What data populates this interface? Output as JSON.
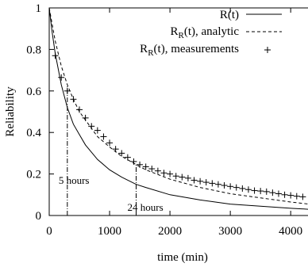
{
  "chart_data": {
    "type": "line",
    "title": "",
    "xlabel": "time (min)",
    "ylabel": "Reliability",
    "xlim": [
      0,
      4300
    ],
    "ylim": [
      0,
      1
    ],
    "x_ticks": [
      0,
      1000,
      2000,
      3000,
      4000
    ],
    "y_ticks": [
      0,
      0.2,
      0.4,
      0.6,
      0.8,
      1
    ],
    "x_tick_labels": [
      "0",
      "1000",
      "2000",
      "3000",
      "4000"
    ],
    "y_tick_labels": [
      "0",
      "0.2",
      "0.4",
      "0.6",
      "0.8",
      "1"
    ],
    "grid": false,
    "legend_position": "top-right",
    "series": [
      {
        "name": "R(t)",
        "style": "solid",
        "x": [
          0,
          50,
          100,
          200,
          300,
          400,
          500,
          600,
          800,
          1000,
          1200,
          1440,
          1600,
          2000,
          2500,
          3000,
          3500,
          4000,
          4300
        ],
        "y": [
          1.0,
          0.88,
          0.78,
          0.63,
          0.52,
          0.44,
          0.39,
          0.34,
          0.27,
          0.22,
          0.185,
          0.15,
          0.135,
          0.1,
          0.075,
          0.055,
          0.045,
          0.035,
          0.03
        ]
      },
      {
        "name": "R_R(t), analytic",
        "style": "dashed",
        "x": [
          0,
          50,
          100,
          200,
          300,
          400,
          500,
          600,
          800,
          1000,
          1200,
          1440,
          1600,
          2000,
          2500,
          3000,
          3500,
          4000,
          4300
        ],
        "y": [
          1.0,
          0.92,
          0.84,
          0.72,
          0.63,
          0.56,
          0.5,
          0.46,
          0.38,
          0.33,
          0.285,
          0.245,
          0.22,
          0.175,
          0.135,
          0.105,
          0.085,
          0.065,
          0.055
        ]
      },
      {
        "name": "R_R(t), measurements",
        "style": "points",
        "x": [
          100,
          200,
          300,
          400,
          500,
          600,
          700,
          800,
          900,
          1000,
          1100,
          1200,
          1300,
          1400,
          1500,
          1600,
          1700,
          1800,
          1900,
          2000,
          2100,
          2200,
          2300,
          2400,
          2500,
          2600,
          2700,
          2800,
          2900,
          3000,
          3100,
          3200,
          3300,
          3400,
          3500,
          3600,
          3700,
          3800,
          3900,
          4000,
          4100,
          4200
        ],
        "y": [
          0.77,
          0.665,
          0.6,
          0.56,
          0.51,
          0.47,
          0.43,
          0.41,
          0.38,
          0.35,
          0.32,
          0.3,
          0.28,
          0.26,
          0.245,
          0.235,
          0.225,
          0.215,
          0.205,
          0.2,
          0.19,
          0.185,
          0.18,
          0.17,
          0.165,
          0.16,
          0.155,
          0.15,
          0.145,
          0.14,
          0.135,
          0.13,
          0.125,
          0.12,
          0.118,
          0.115,
          0.11,
          0.105,
          0.1,
          0.097,
          0.093,
          0.09
        ]
      }
    ],
    "annotations": [
      {
        "text": "5 hours",
        "x": 300
      },
      {
        "text": "24 hours",
        "x": 1440
      }
    ]
  },
  "legend": {
    "items": [
      {
        "label_main": "R(t)",
        "label_sub": "",
        "label_rest": ""
      },
      {
        "label_main": "R",
        "label_sub": "R",
        "label_rest": "(t), analytic"
      },
      {
        "label_main": "R",
        "label_sub": "R",
        "label_rest": "(t), measurements"
      }
    ]
  }
}
